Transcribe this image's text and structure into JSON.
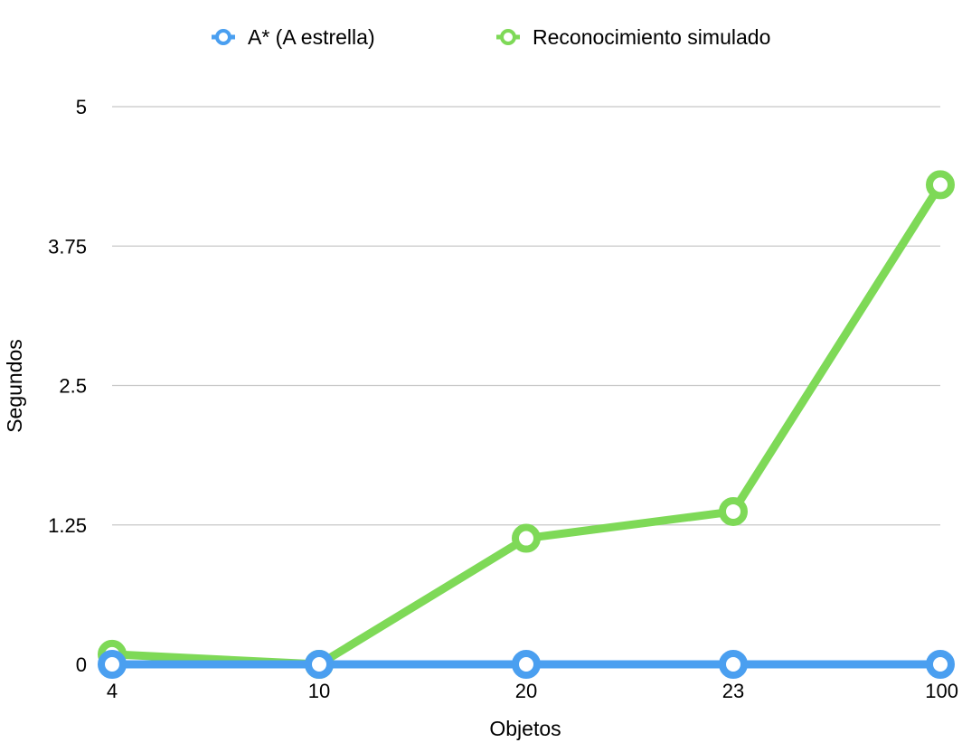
{
  "chart_data": {
    "type": "line",
    "categories": [
      "4",
      "10",
      "20",
      "23",
      "100"
    ],
    "series": [
      {
        "name": "A* (A estrella)",
        "color": "#4a9ff0",
        "values": [
          0,
          0,
          0,
          0,
          0
        ]
      },
      {
        "name": "Reconocimiento simulado",
        "color": "#7ed957",
        "values": [
          0.09,
          0.0,
          1.13,
          1.37,
          4.3
        ]
      }
    ],
    "xlabel": "Objetos",
    "ylabel": "Segundos",
    "ylim": [
      0,
      5
    ],
    "yticks": [
      "0",
      "1.25",
      "2.5",
      "3.75",
      "5"
    ],
    "grid": true,
    "legend_position": "top"
  }
}
